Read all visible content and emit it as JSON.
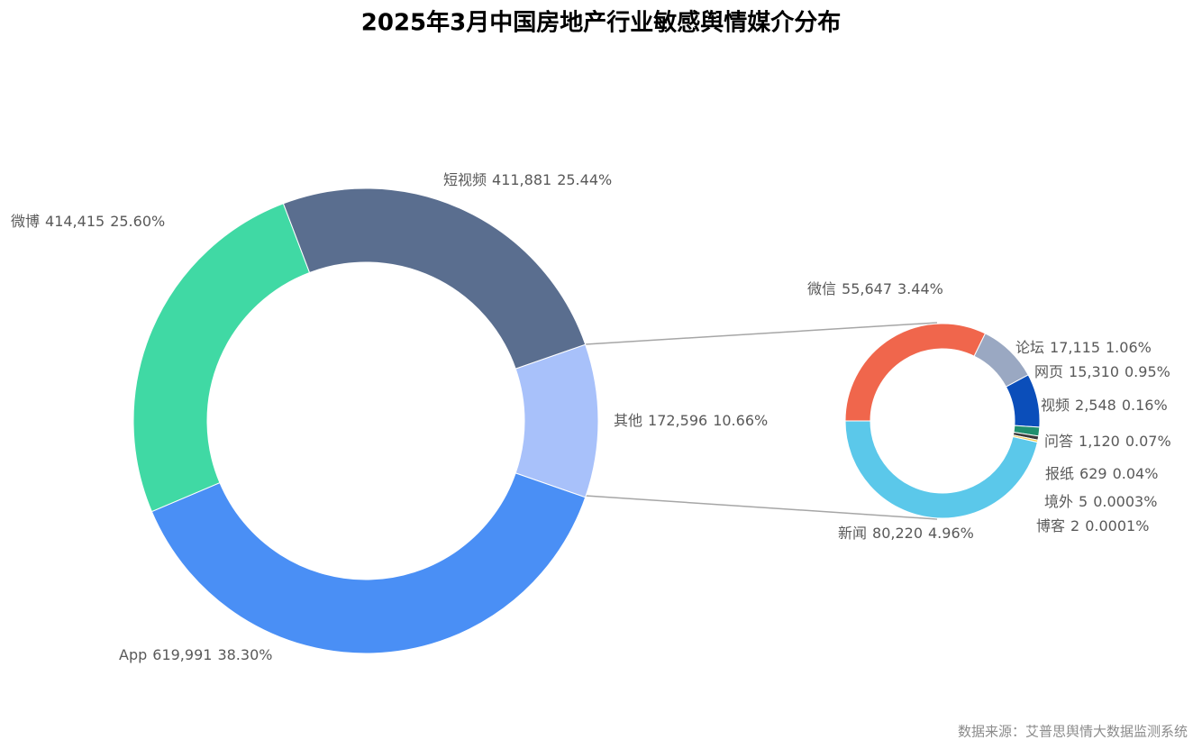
{
  "title": "2025年3月中国房地产行业敏感舆情媒介分布",
  "source": "数据来源：艾普思舆情大数据监测系统",
  "chart_data": [
    {
      "type": "pie",
      "categories": [
        "其他",
        "App",
        "微博",
        "短视频"
      ],
      "values": [
        172596,
        619991,
        414415,
        411881
      ],
      "value_labels": [
        "172,596",
        "619,991",
        "414,415",
        "411,881"
      ],
      "percent_labels": [
        "10.66%",
        "38.30%",
        "25.60%",
        "25.44%"
      ],
      "colors": [
        "#A8C1FA",
        "#4A8FF5",
        "#40D9A4",
        "#5A6E8F"
      ]
    },
    {
      "type": "pie",
      "categories": [
        "微信",
        "论坛",
        "网页",
        "视频",
        "问答",
        "报纸",
        "境外",
        "博客",
        "新闻"
      ],
      "values": [
        55647,
        17115,
        15310,
        2548,
        1120,
        629,
        5,
        2,
        80220
      ],
      "value_labels": [
        "55,647",
        "17,115",
        "15,310",
        "2,548",
        "1,120",
        "629",
        "5",
        "2",
        "80,220"
      ],
      "percent_labels": [
        "3.44%",
        "1.06%",
        "0.95%",
        "0.16%",
        "0.07%",
        "0.04%",
        "0.0003%",
        "0.0001%",
        "4.96%"
      ],
      "colors": [
        "#F0664C",
        "#9AA8C2",
        "#0B4EBA",
        "#1F8F6E",
        "#3A3A3A",
        "#F2C94C",
        "#C0392B",
        "#7F7F7F",
        "#5BC8EA"
      ]
    }
  ]
}
